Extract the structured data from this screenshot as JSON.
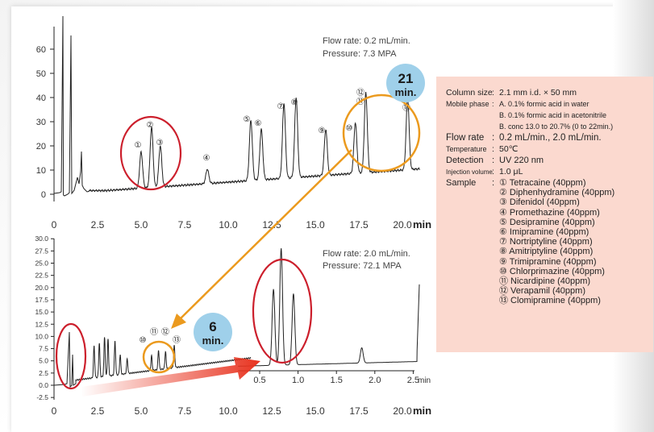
{
  "colors": {
    "trace": "#222222",
    "red_circle": "#cc1f2c",
    "orange_circle": "#eb9a1e",
    "arrow_orange": "#eb9a1e",
    "arrow_red": "#e8331f",
    "badge": "#9fd0ea",
    "info_bg": "#fbd9cf"
  },
  "top_chart": {
    "flow_rate": "Flow rate: 0.2 mL/min.",
    "pressure": "Pressure: 7.3 MPA",
    "badge_number": "21",
    "badge_unit": "min.",
    "peak_labels": [
      "①",
      "②",
      "③",
      "④",
      "⑤",
      "⑥",
      "⑦",
      "⑧",
      "⑨",
      "⑩",
      "⑪",
      "⑫",
      "⑬"
    ],
    "y_ticks": [
      "60",
      "50",
      "40",
      "30",
      "20",
      "10",
      "0"
    ],
    "x_ticks": [
      "0",
      "2.5",
      "5.0",
      "7.5",
      "10.0",
      "12.5",
      "15.0",
      "17.5",
      "20.0"
    ],
    "x_unit": "min"
  },
  "bottom_chart": {
    "flow_rate": "Flow rate: 2.0 mL/min.",
    "pressure": "Pressure: 72.1 MPA",
    "badge_number": "6",
    "badge_unit": "min.",
    "peak_labels": [
      "⑩",
      "⑪",
      "⑫",
      "⑬"
    ],
    "y_ticks": [
      "30.0",
      "27.5",
      "25.0",
      "22.5",
      "20.0",
      "17.5",
      "15.0",
      "12.5",
      "10.0",
      "7.5",
      "5.0",
      "2.5",
      "0.0",
      "-2.5"
    ],
    "x_ticks": [
      "0",
      "2.5",
      "5.0",
      "7.5",
      "10.0",
      "12.5",
      "15.0",
      "17.5",
      "20.0"
    ],
    "x_unit": "min",
    "inset_x_ticks": [
      "0.5",
      "1.0",
      "1.5",
      "2.0",
      "2.5"
    ],
    "inset_x_unit": "min"
  },
  "conditions": {
    "column_key": "Column size",
    "column_val": "2.1 mm i.d. × 50 mm",
    "mobile_key": "Mobile phase",
    "mobile_a": "A. 0.1% formic acid in water",
    "mobile_b": "B. 0.1% formic acid in acetonitrile",
    "mobile_c": "B. conc 13.0 to 20.7% (0 to 22min.)",
    "flow_key": "Flow rate",
    "flow_val": "0.2 mL/min., 2.0 mL/min.",
    "temp_key": "Temperature",
    "temp_val": "50℃",
    "detect_key": "Detection",
    "detect_val": "UV 220 nm",
    "inj_key": "Injection volume",
    "inj_val": "1.0 μL",
    "sample_key": "Sample",
    "samples": [
      "① Tetracaine (40ppm)",
      "② Diphenhydramine (40ppm)",
      "③ Difenidol (40ppm)",
      "④ Promethazine (40ppm)",
      "⑤ Desipramine (40ppm)",
      "⑥ Imipramine (40ppm)",
      "⑦ Nortriptyline (40ppm)",
      "⑧ Amitriptyline (40ppm)",
      "⑨ Trimipramine (40ppm)",
      "⑩ Chlorprimazine (40ppm)",
      "⑪ Nicardipine (40ppm)",
      "⑫ Verapamil (40ppm)",
      "⑬ Clomipramine (40ppm)"
    ]
  },
  "chart_data": [
    {
      "type": "line",
      "xlabel": "min",
      "xlim": [
        0,
        21
      ],
      "ylim": [
        -3,
        65
      ],
      "series": [
        {
          "peaks": [
            {
              "label": "①",
              "rt": 5.0,
              "height": 15
            },
            {
              "label": "②",
              "rt": 5.6,
              "height": 25
            },
            {
              "label": "③",
              "rt": 6.1,
              "height": 17
            },
            {
              "label": "④",
              "rt": 8.8,
              "height": 6
            },
            {
              "label": "⑤",
              "rt": 11.3,
              "height": 25
            },
            {
              "label": "⑥",
              "rt": 11.9,
              "height": 21
            },
            {
              "label": "⑦",
              "rt": 13.2,
              "height": 31
            },
            {
              "label": "⑧",
              "rt": 13.9,
              "height": 33
            },
            {
              "label": "⑨",
              "rt": 15.6,
              "height": 19
            },
            {
              "label": "⑩",
              "rt": 17.3,
              "height": 21
            },
            {
              "label": "⑪",
              "rt": 17.9,
              "height": 33
            },
            {
              "label": "⑫",
              "rt": 17.9,
              "height": 33
            },
            {
              "label": "⑬",
              "rt": 20.3,
              "height": 30
            }
          ]
        }
      ]
    },
    {
      "type": "line",
      "xlabel": "min",
      "xlim": [
        0,
        21
      ],
      "ylim": [
        -2.5,
        30.0
      ],
      "series": [
        {
          "peaks": [
            {
              "label": "⑩",
              "rt": 5.6,
              "height": 5.5
            },
            {
              "label": "⑪",
              "rt": 6.0,
              "height": 6.5
            },
            {
              "label": "⑫",
              "rt": 6.4,
              "height": 6.0
            },
            {
              "label": "⑬",
              "rt": 6.9,
              "height": 7.0
            }
          ]
        }
      ],
      "inset": {
        "xlim": [
          0.2,
          2.7
        ],
        "peaks": [
          {
            "rt": 0.68,
            "height": 15
          },
          {
            "rt": 0.78,
            "height": 23
          },
          {
            "rt": 0.94,
            "height": 14
          },
          {
            "rt": 1.83,
            "height": 3
          }
        ]
      }
    }
  ]
}
